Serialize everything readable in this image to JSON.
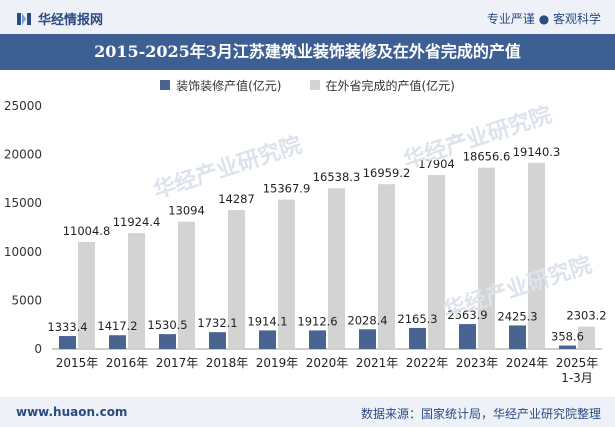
{
  "header": {
    "brand": "华经情报网",
    "right_text_1": "专业严谨",
    "right_text_2": "客观科学",
    "logo_color": "#2b4a82"
  },
  "title": "2015-2025年3月江苏建筑业装饰装修及在外省完成的产值",
  "footer": {
    "url": "www.huaon.com",
    "source": "数据来源：国家统计局，华经产业研究院整理"
  },
  "watermark_text": "华经产业研究院",
  "chart_data": {
    "type": "bar",
    "categories": [
      "2015年",
      "2016年",
      "2017年",
      "2018年",
      "2019年",
      "2020年",
      "2021年",
      "2022年",
      "2023年",
      "2024年",
      "2025年\n1-3月"
    ],
    "series": [
      {
        "name": "装饰装修产值(亿元)",
        "color": "#4a6491",
        "values": [
          1333.4,
          1417.2,
          1530.5,
          1732.1,
          1914.1,
          1912.6,
          2028.4,
          2165.3,
          2563.9,
          2425.3,
          358.6
        ],
        "labels": [
          "1333.4",
          "1417.2",
          "1530.5",
          "1732.1",
          "1914.1",
          "1912.6",
          "2028.4",
          "2165.3",
          "2563.9",
          "2425.3",
          "358.6"
        ]
      },
      {
        "name": "在外省完成的产值(亿元)",
        "color": "#d3d3d3",
        "values": [
          11004.8,
          11924.4,
          13094,
          14287,
          15367.9,
          16538.3,
          16959.2,
          17904,
          18656.6,
          19140.3,
          2303.2
        ],
        "labels": [
          "11004.8",
          "11924.4",
          "13094",
          "14287",
          "15367.9",
          "16538.3",
          "16959.2",
          "17904",
          "18656.6",
          "19140.3",
          "2303.2"
        ]
      }
    ],
    "ylim": [
      0,
      25000
    ],
    "yticks": [
      "0",
      "5000",
      "10000",
      "15000",
      "20000",
      "25000"
    ],
    "grid": false,
    "legend": "top-center"
  }
}
